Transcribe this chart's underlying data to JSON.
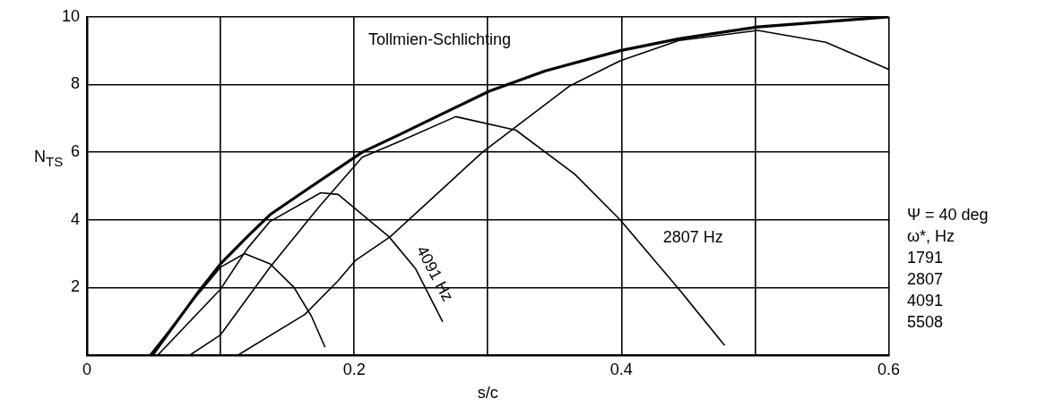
{
  "chart_data": {
    "type": "line",
    "xlabel": "s/c",
    "ylabel": "N$_{TS}$",
    "xlim": [
      0,
      0.6
    ],
    "ylim": [
      0,
      10
    ],
    "xticks": [
      0,
      {
        "value": 0.1,
        "label": null
      },
      0.2,
      {
        "value": 0.3,
        "label": null
      },
      0.4,
      {
        "value": 0.5,
        "label": null
      },
      0.6
    ],
    "yticks": [
      {
        "value": 0,
        "label": null
      },
      2,
      4,
      6,
      8,
      10
    ],
    "grid": true,
    "legend": false,
    "marker": "none",
    "line_style": "solid",
    "series": [
      {
        "color": "#000000",
        "x": [
          0.049,
          0.084,
          0.1,
          0.12,
          0.137,
          0.161,
          0.206,
          0.233,
          0.301,
          0.343,
          0.399,
          0.443,
          0.502,
          0.6
        ],
        "values": [
          0,
          1.9,
          2.7,
          3.5,
          4.15,
          4.8,
          6.0,
          6.5,
          7.8,
          8.4,
          9.0,
          9.35,
          9.7,
          10.0
        ]
      },
      {
        "color": "#000000",
        "x": [
          0.113,
          0.163,
          0.188,
          0.201,
          0.227,
          0.296,
          0.361,
          0.399,
          0.443,
          0.502,
          0.553,
          0.6
        ],
        "values": [
          0,
          1.2,
          2.2,
          2.8,
          3.5,
          6.0,
          7.95,
          8.7,
          9.3,
          9.6,
          9.25,
          8.45
        ]
      },
      {
        "color": "#000000",
        "x": [
          0.077,
          0.1,
          0.137,
          0.173,
          0.206,
          0.233,
          0.276,
          0.321,
          0.365,
          0.399,
          0.443,
          0.477
        ],
        "values": [
          0,
          0.6,
          2.6,
          4.35,
          5.85,
          6.3,
          7.05,
          6.65,
          5.35,
          4.0,
          1.95,
          0.3
        ]
      },
      {
        "color": "#000000",
        "x": [
          0.053,
          0.1,
          0.12,
          0.137,
          0.175,
          0.188,
          0.226,
          0.246,
          0.266
        ],
        "values": [
          0,
          1.95,
          3.15,
          3.95,
          4.8,
          4.75,
          3.5,
          2.55,
          1.0
        ]
      },
      {
        "color": "#000000",
        "x": [
          0.047,
          0.08,
          0.1,
          0.118,
          0.137,
          0.155,
          0.168,
          0.178
        ],
        "values": [
          0,
          1.65,
          2.6,
          3.0,
          2.7,
          2.0,
          1.15,
          0.25
        ]
      }
    ],
    "annotations": [
      "Tollmien-Schlichting",
      "4091 Hz",
      "2807 Hz",
      "Ψ = 40 deg",
      "ω*, Hz",
      "1791",
      "2807",
      "4091",
      "5508"
    ]
  }
}
